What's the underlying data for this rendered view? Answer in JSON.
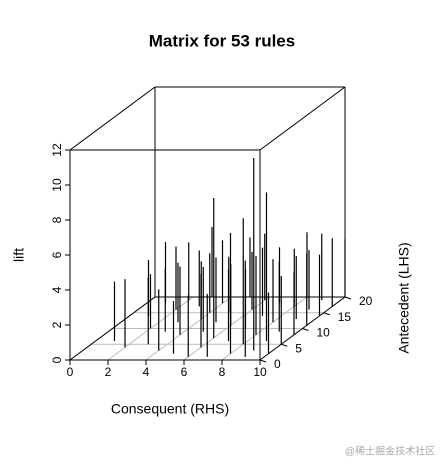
{
  "chart_data": {
    "type": "scatter3d-spike",
    "title": "Matrix for 53 rules",
    "xlabel": "Consequent (RHS)",
    "ylabel": "Antecedent (LHS)",
    "zlabel": "lift",
    "xlim": [
      0,
      10
    ],
    "xticks": [
      0,
      2,
      4,
      6,
      8,
      10
    ],
    "ylim": [
      0,
      20
    ],
    "yticks": [
      0,
      5,
      10,
      15,
      20
    ],
    "zlim": [
      0,
      12
    ],
    "zticks": [
      0,
      2,
      4,
      6,
      8,
      10,
      12
    ],
    "color": "#000000",
    "x": [
      1,
      1,
      2,
      2,
      2,
      3,
      3,
      3,
      3,
      4,
      4,
      4,
      4,
      5,
      5,
      5,
      5,
      6,
      6,
      6,
      6,
      6,
      7,
      7,
      7,
      7,
      7,
      8,
      8,
      8,
      8,
      8,
      8,
      9,
      9,
      9,
      9,
      9,
      9,
      9,
      10,
      10,
      10,
      10,
      10,
      10,
      10,
      1,
      2,
      3,
      4,
      5,
      6
    ],
    "y": [
      14,
      18,
      10,
      16,
      19,
      5,
      12,
      17,
      20,
      3,
      8,
      13,
      18,
      2,
      9,
      15,
      20,
      4,
      7,
      11,
      16,
      19,
      1,
      6,
      10,
      14,
      18,
      2,
      5,
      8,
      12,
      17,
      20,
      1,
      3,
      6,
      9,
      13,
      16,
      19,
      2,
      5,
      8,
      11,
      14,
      17,
      20,
      6,
      4,
      9,
      15,
      12,
      1
    ],
    "z": [
      3.2,
      3.5,
      3.1,
      3.6,
      3.3,
      3.8,
      3.4,
      3.2,
      4.0,
      3.5,
      3.9,
      3.3,
      3.6,
      3.0,
      3.7,
      3.2,
      3.4,
      4.2,
      8.0,
      3.5,
      3.3,
      3.8,
      3.6,
      4.1,
      3.4,
      3.9,
      3.2,
      6.9,
      7.2,
      4.5,
      3.6,
      3.3,
      3.7,
      5.5,
      11.0,
      8.5,
      4.0,
      3.6,
      3.4,
      3.8,
      3.5,
      3.9,
      3.6,
      4.1,
      3.5,
      3.9,
      3.3,
      3.4,
      3.9,
      3.6,
      3.4,
      3.7,
      3.5
    ]
  },
  "watermark": "@稀土掘金技术社区"
}
